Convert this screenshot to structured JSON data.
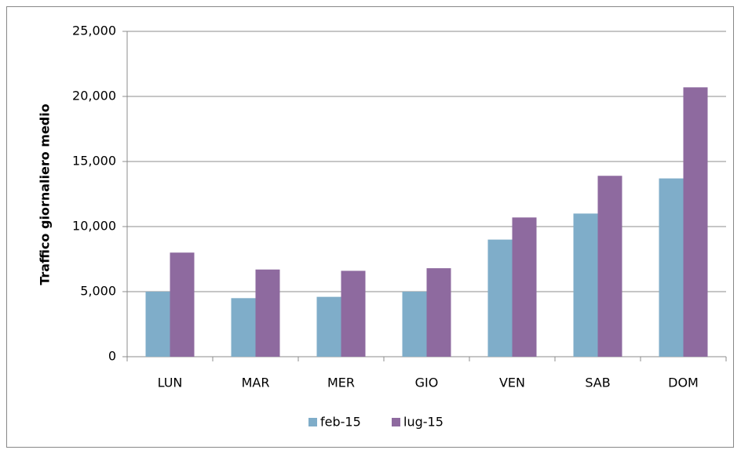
{
  "chart_data": {
    "type": "bar",
    "y_label": "Traffico giornaliero medio",
    "categories": [
      "LUN",
      "MAR",
      "MER",
      "GIO",
      "VEN",
      "SAB",
      "DOM"
    ],
    "series": [
      {
        "name": "feb-15",
        "color": "#7fadc9",
        "values": [
          5000,
          4500,
          4600,
          5000,
          9000,
          11000,
          13700
        ]
      },
      {
        "name": "lug-15",
        "color": "#8e6a9f",
        "values": [
          8000,
          6700,
          6600,
          6800,
          10700,
          13900,
          20700
        ]
      }
    ],
    "ylim": [
      0,
      25000
    ],
    "yticks": [
      0,
      {
        "value": 5000,
        "label": "5,000"
      },
      {
        "value": 10000,
        "label": "10,000"
      },
      {
        "value": 15000,
        "label": "15,000"
      },
      {
        "value": 20000,
        "label": "20,000"
      },
      {
        "value": 25000,
        "label": "25,000"
      }
    ],
    "grid": true,
    "legend": "bottom"
  }
}
